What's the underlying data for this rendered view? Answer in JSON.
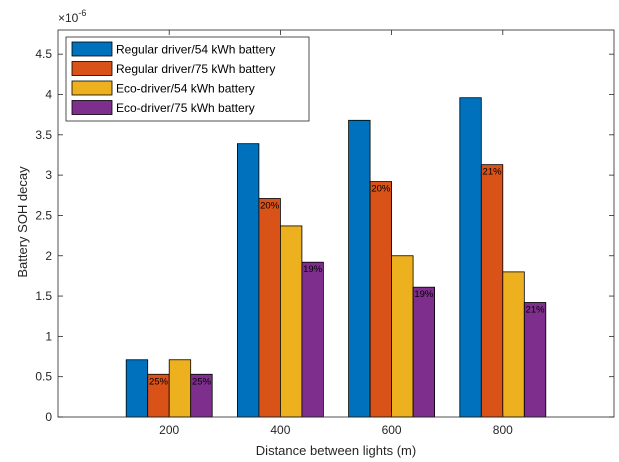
{
  "chart_data": {
    "type": "bar",
    "xlabel": "Distance between lights (m)",
    "ylabel": "Battery SOH decay",
    "y_exponent_label": "×10",
    "y_exponent_power": "-6",
    "ylim": [
      0,
      4.8
    ],
    "yticks": [
      "0",
      "0.5",
      "1",
      "1.5",
      "2",
      "2.5",
      "3",
      "3.5",
      "4",
      "4.5"
    ],
    "grid": false,
    "legend_position": "top-left",
    "categories": [
      "200",
      "400",
      "600",
      "800"
    ],
    "series": [
      {
        "name": "Regular driver/54 kWh battery",
        "color": "#0072BD",
        "values": [
          0.71,
          3.39,
          3.68,
          3.96
        ],
        "labels": [
          "",
          "",
          "",
          ""
        ]
      },
      {
        "name": "Regular driver/75 kWh battery",
        "color": "#D95319",
        "values": [
          0.53,
          2.71,
          2.92,
          3.13
        ],
        "labels": [
          "25%",
          "20%",
          "20%",
          "21%"
        ]
      },
      {
        "name": "Eco-driver/54 kWh battery",
        "color": "#EDB120",
        "values": [
          0.71,
          2.37,
          2.0,
          1.8
        ],
        "labels": [
          "",
          "",
          "",
          ""
        ]
      },
      {
        "name": "Eco-driver/75 kWh battery",
        "color": "#7E2F8E",
        "values": [
          0.53,
          1.92,
          1.61,
          1.42
        ],
        "labels": [
          "25%",
          "19%",
          "19%",
          "21%"
        ]
      }
    ]
  }
}
